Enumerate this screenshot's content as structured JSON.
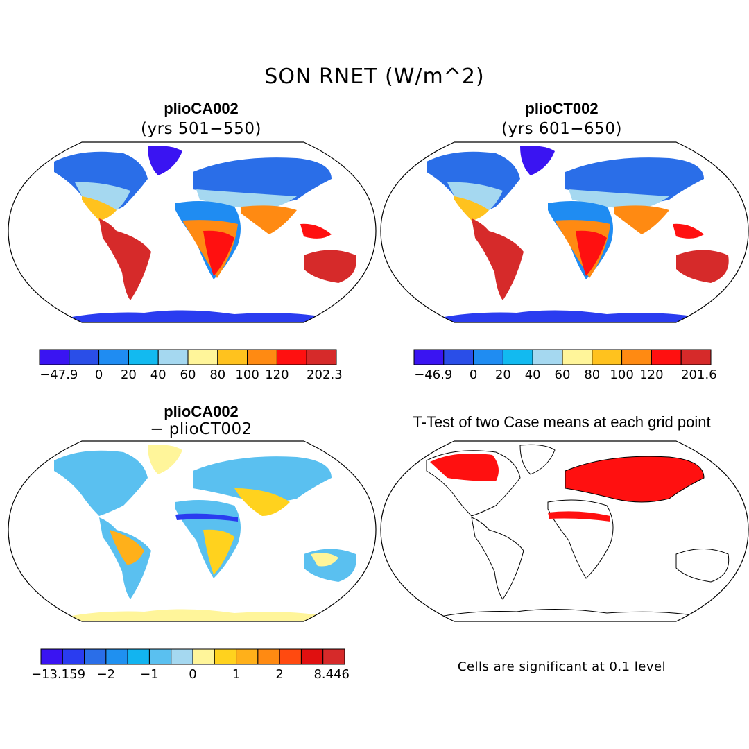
{
  "figure": {
    "title": "SON RNET (W/m^2)"
  },
  "panels": [
    {
      "id": "panel-a",
      "case": "plioCA002",
      "subtitle": "(yrs 501−550)",
      "colorbar": {
        "colors": [
          "#3a14f2",
          "#2a4ee8",
          "#1f8cf2",
          "#12baf0",
          "#a5d8f0",
          "#fff59a",
          "#ffc21e",
          "#ff8a12",
          "#ff1010",
          "#d62a2a"
        ],
        "labels": [
          "−47.9",
          "0",
          "20",
          "40",
          "60",
          "80",
          "100",
          "120",
          "202.3"
        ]
      }
    },
    {
      "id": "panel-b",
      "case": "plioCT002",
      "subtitle": "(yrs 601−650)",
      "colorbar": {
        "colors": [
          "#3a14f2",
          "#2a4ee8",
          "#1f8cf2",
          "#12baf0",
          "#a5d8f0",
          "#fff59a",
          "#ffc21e",
          "#ff8a12",
          "#ff1010",
          "#d62a2a"
        ],
        "labels": [
          "−46.9",
          "0",
          "20",
          "40",
          "60",
          "80",
          "100",
          "120",
          "201.6"
        ]
      }
    },
    {
      "id": "panel-c",
      "case": "plioCA002",
      "subtitle": "− plioCT002",
      "colorbar": {
        "colors": [
          "#3a14f2",
          "#2a3cf0",
          "#2a6ee8",
          "#1f90f0",
          "#12b4f0",
          "#5ac0f0",
          "#a5d8f0",
          "#fff59a",
          "#ffd21e",
          "#ffb01a",
          "#ff8a12",
          "#ff4a10",
          "#e01010",
          "#d62a2a"
        ],
        "labels": [
          "−13.159",
          "−2",
          "−1",
          "0",
          "1",
          "2",
          "8.446"
        ]
      }
    },
    {
      "id": "panel-d",
      "title": "T-Test of two Case means at each grid point",
      "note": "Cells are significant at 0.1 level"
    }
  ]
}
